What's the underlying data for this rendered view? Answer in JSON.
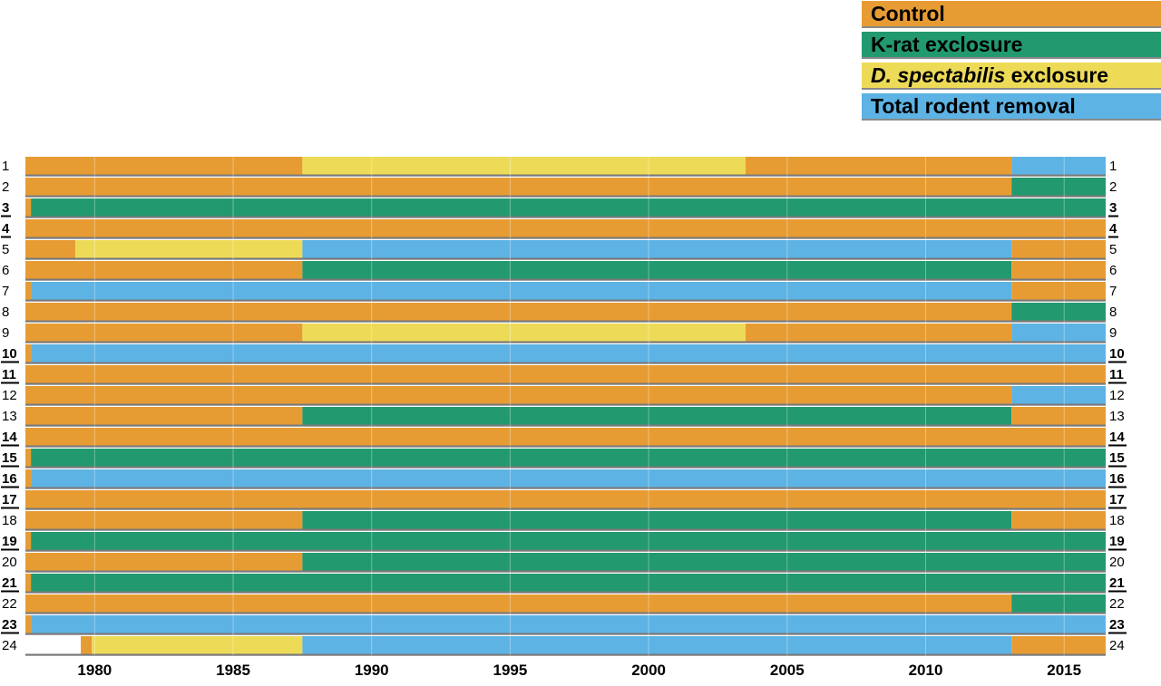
{
  "colors": {
    "C": "#E79C33",
    "K": "#22996F",
    "D": "#EDDB58",
    "T": "#5DB3E4",
    "N": "#FFFFFF"
  },
  "legend": [
    {
      "code": "C",
      "label": "Control",
      "color": "#E79C33"
    },
    {
      "code": "K",
      "label": "K-rat exclosure",
      "color": "#22996F"
    },
    {
      "code": "D",
      "label_italic": "D. spectabilis",
      "label_rest": " exclosure",
      "color": "#EDDB58"
    },
    {
      "code": "T",
      "label": "Total rodent removal",
      "color": "#5DB3E4"
    }
  ],
  "chart_data": {
    "type": "bar",
    "orientation": "horizontal-timeline",
    "xlim": [
      1977.5,
      2016.5
    ],
    "x_ticks": [
      1980,
      1985,
      1990,
      1995,
      2000,
      2005,
      2010,
      2015
    ],
    "x_tick_labels": [
      "1980",
      "1985",
      "1990",
      "1995",
      "2000",
      "2005",
      "2010",
      "2015"
    ],
    "plots": [
      {
        "label": "1",
        "bold": false,
        "segments": [
          [
            1977.5,
            1987.5,
            "C"
          ],
          [
            1987.5,
            2003.5,
            "D"
          ],
          [
            2003.5,
            2013.1,
            "C"
          ],
          [
            2013.1,
            2016.5,
            "T"
          ]
        ]
      },
      {
        "label": "2",
        "bold": false,
        "segments": [
          [
            1977.5,
            2013.1,
            "C"
          ],
          [
            2013.1,
            2016.5,
            "K"
          ]
        ]
      },
      {
        "label": "3",
        "bold": true,
        "segments": [
          [
            1977.5,
            1977.7,
            "C"
          ],
          [
            1977.7,
            2016.5,
            "K"
          ]
        ]
      },
      {
        "label": "4",
        "bold": true,
        "segments": [
          [
            1977.5,
            2016.5,
            "C"
          ]
        ]
      },
      {
        "label": "5",
        "bold": false,
        "segments": [
          [
            1977.5,
            1979.3,
            "C"
          ],
          [
            1979.3,
            1987.5,
            "D"
          ],
          [
            1987.5,
            2013.1,
            "T"
          ],
          [
            2013.1,
            2016.5,
            "C"
          ]
        ]
      },
      {
        "label": "6",
        "bold": false,
        "segments": [
          [
            1977.5,
            1987.5,
            "C"
          ],
          [
            1987.5,
            2013.1,
            "K"
          ],
          [
            2013.1,
            2016.5,
            "C"
          ]
        ]
      },
      {
        "label": "7",
        "bold": false,
        "segments": [
          [
            1977.5,
            1977.7,
            "C"
          ],
          [
            1977.7,
            2013.1,
            "T"
          ],
          [
            2013.1,
            2016.5,
            "C"
          ]
        ]
      },
      {
        "label": "8",
        "bold": false,
        "segments": [
          [
            1977.5,
            2013.1,
            "C"
          ],
          [
            2013.1,
            2016.5,
            "K"
          ]
        ]
      },
      {
        "label": "9",
        "bold": false,
        "segments": [
          [
            1977.5,
            1987.5,
            "C"
          ],
          [
            1987.5,
            2003.5,
            "D"
          ],
          [
            2003.5,
            2013.1,
            "C"
          ],
          [
            2013.1,
            2016.5,
            "T"
          ]
        ]
      },
      {
        "label": "10",
        "bold": true,
        "segments": [
          [
            1977.5,
            1977.7,
            "C"
          ],
          [
            1977.7,
            2016.5,
            "T"
          ]
        ]
      },
      {
        "label": "11",
        "bold": true,
        "segments": [
          [
            1977.5,
            2016.5,
            "C"
          ]
        ]
      },
      {
        "label": "12",
        "bold": false,
        "segments": [
          [
            1977.5,
            2013.1,
            "C"
          ],
          [
            2013.1,
            2016.5,
            "T"
          ]
        ]
      },
      {
        "label": "13",
        "bold": false,
        "segments": [
          [
            1977.5,
            1987.5,
            "C"
          ],
          [
            1987.5,
            2013.1,
            "K"
          ],
          [
            2013.1,
            2016.5,
            "C"
          ]
        ]
      },
      {
        "label": "14",
        "bold": true,
        "segments": [
          [
            1977.5,
            2016.5,
            "C"
          ]
        ]
      },
      {
        "label": "15",
        "bold": true,
        "segments": [
          [
            1977.5,
            1977.7,
            "C"
          ],
          [
            1977.7,
            2016.5,
            "K"
          ]
        ]
      },
      {
        "label": "16",
        "bold": true,
        "segments": [
          [
            1977.5,
            1977.7,
            "C"
          ],
          [
            1977.7,
            2016.5,
            "T"
          ]
        ]
      },
      {
        "label": "17",
        "bold": true,
        "segments": [
          [
            1977.5,
            2016.5,
            "C"
          ]
        ]
      },
      {
        "label": "18",
        "bold": false,
        "segments": [
          [
            1977.5,
            1987.5,
            "C"
          ],
          [
            1987.5,
            2013.1,
            "K"
          ],
          [
            2013.1,
            2016.5,
            "C"
          ]
        ]
      },
      {
        "label": "19",
        "bold": true,
        "segments": [
          [
            1977.5,
            1977.7,
            "C"
          ],
          [
            1977.7,
            2016.5,
            "K"
          ]
        ]
      },
      {
        "label": "20",
        "bold": false,
        "segments": [
          [
            1977.5,
            1987.5,
            "C"
          ],
          [
            1987.5,
            2016.5,
            "K"
          ]
        ]
      },
      {
        "label": "21",
        "bold": true,
        "segments": [
          [
            1977.5,
            1977.7,
            "C"
          ],
          [
            1977.7,
            2016.5,
            "K"
          ]
        ]
      },
      {
        "label": "22",
        "bold": false,
        "segments": [
          [
            1977.5,
            2013.1,
            "C"
          ],
          [
            2013.1,
            2016.5,
            "K"
          ]
        ]
      },
      {
        "label": "23",
        "bold": true,
        "segments": [
          [
            1977.5,
            1977.7,
            "C"
          ],
          [
            1977.7,
            2016.5,
            "T"
          ]
        ]
      },
      {
        "label": "24",
        "bold": false,
        "segments": [
          [
            1977.5,
            1979.5,
            "N"
          ],
          [
            1979.5,
            1979.9,
            "C"
          ],
          [
            1979.9,
            1987.5,
            "D"
          ],
          [
            1987.5,
            2013.1,
            "T"
          ],
          [
            2013.1,
            2016.5,
            "C"
          ]
        ]
      }
    ]
  }
}
